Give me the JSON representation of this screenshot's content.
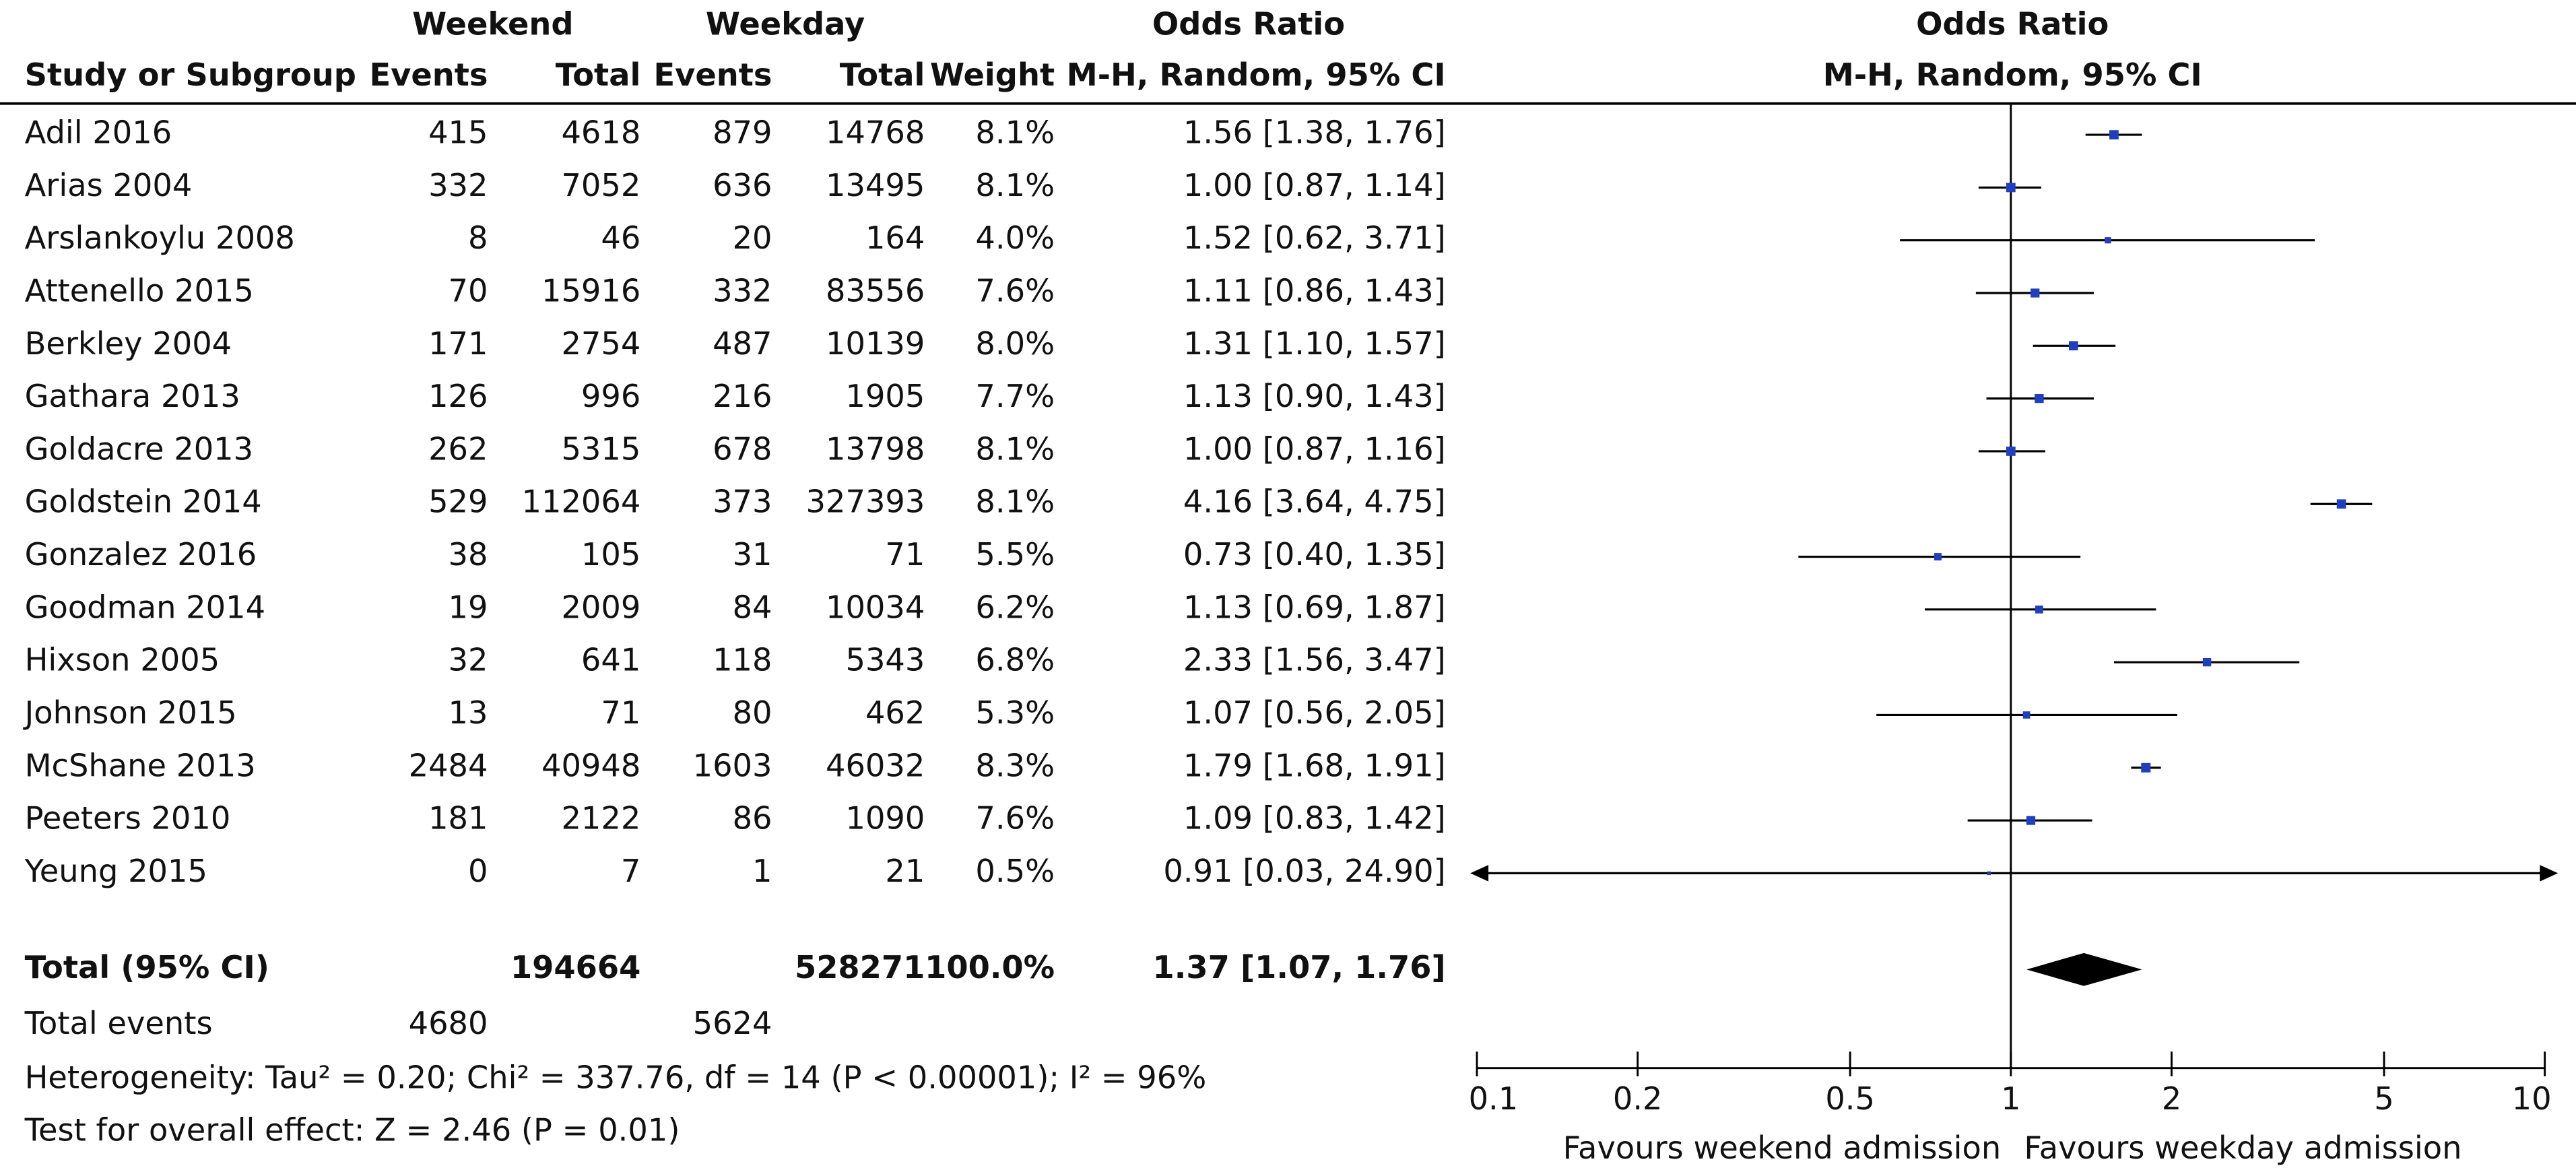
{
  "chart_data": {
    "type": "forest",
    "group_headers": {
      "weekend": "Weekend",
      "weekday": "Weekday",
      "table_or": "Odds Ratio",
      "plot_or": "Odds Ratio"
    },
    "columns": {
      "study": "Study or Subgroup",
      "weekend_events": "Events",
      "weekend_total": "Total",
      "weekday_events": "Events",
      "weekday_total": "Total",
      "weight": "Weight",
      "table_method": "M-H, Random, 95% CI",
      "plot_method": "M-H, Random, 95% CI"
    },
    "studies": [
      {
        "name": "Adil 2016",
        "weekend_events": 415,
        "weekend_total": 4618,
        "weekday_events": 879,
        "weekday_total": 14768,
        "weight": 8.1,
        "weight_label": "8.1%",
        "or": 1.56,
        "ci_low": 1.38,
        "ci_high": 1.76,
        "ci_label": "1.56 [1.38, 1.76]"
      },
      {
        "name": "Arias 2004",
        "weekend_events": 332,
        "weekend_total": 7052,
        "weekday_events": 636,
        "weekday_total": 13495,
        "weight": 8.1,
        "weight_label": "8.1%",
        "or": 1.0,
        "ci_low": 0.87,
        "ci_high": 1.14,
        "ci_label": "1.00 [0.87, 1.14]"
      },
      {
        "name": "Arslankoylu 2008",
        "weekend_events": 8,
        "weekend_total": 46,
        "weekday_events": 20,
        "weekday_total": 164,
        "weight": 4.0,
        "weight_label": "4.0%",
        "or": 1.52,
        "ci_low": 0.62,
        "ci_high": 3.71,
        "ci_label": "1.52 [0.62, 3.71]"
      },
      {
        "name": "Attenello 2015",
        "weekend_events": 70,
        "weekend_total": 15916,
        "weekday_events": 332,
        "weekday_total": 83556,
        "weight": 7.6,
        "weight_label": "7.6%",
        "or": 1.11,
        "ci_low": 0.86,
        "ci_high": 1.43,
        "ci_label": "1.11 [0.86, 1.43]"
      },
      {
        "name": "Berkley 2004",
        "weekend_events": 171,
        "weekend_total": 2754,
        "weekday_events": 487,
        "weekday_total": 10139,
        "weight": 8.0,
        "weight_label": "8.0%",
        "or": 1.31,
        "ci_low": 1.1,
        "ci_high": 1.57,
        "ci_label": "1.31 [1.10, 1.57]"
      },
      {
        "name": "Gathara 2013",
        "weekend_events": 126,
        "weekend_total": 996,
        "weekday_events": 216,
        "weekday_total": 1905,
        "weight": 7.7,
        "weight_label": "7.7%",
        "or": 1.13,
        "ci_low": 0.9,
        "ci_high": 1.43,
        "ci_label": "1.13 [0.90, 1.43]"
      },
      {
        "name": "Goldacre 2013",
        "weekend_events": 262,
        "weekend_total": 5315,
        "weekday_events": 678,
        "weekday_total": 13798,
        "weight": 8.1,
        "weight_label": "8.1%",
        "or": 1.0,
        "ci_low": 0.87,
        "ci_high": 1.16,
        "ci_label": "1.00 [0.87, 1.16]"
      },
      {
        "name": "Goldstein 2014",
        "weekend_events": 529,
        "weekend_total": 112064,
        "weekday_events": 373,
        "weekday_total": 327393,
        "weight": 8.1,
        "weight_label": "8.1%",
        "or": 4.16,
        "ci_low": 3.64,
        "ci_high": 4.75,
        "ci_label": "4.16 [3.64, 4.75]"
      },
      {
        "name": "Gonzalez 2016",
        "weekend_events": 38,
        "weekend_total": 105,
        "weekday_events": 31,
        "weekday_total": 71,
        "weight": 5.5,
        "weight_label": "5.5%",
        "or": 0.73,
        "ci_low": 0.4,
        "ci_high": 1.35,
        "ci_label": "0.73 [0.40, 1.35]"
      },
      {
        "name": "Goodman 2014",
        "weekend_events": 19,
        "weekend_total": 2009,
        "weekday_events": 84,
        "weekday_total": 10034,
        "weight": 6.2,
        "weight_label": "6.2%",
        "or": 1.13,
        "ci_low": 0.69,
        "ci_high": 1.87,
        "ci_label": "1.13 [0.69, 1.87]"
      },
      {
        "name": "Hixson 2005",
        "weekend_events": 32,
        "weekend_total": 641,
        "weekday_events": 118,
        "weekday_total": 5343,
        "weight": 6.8,
        "weight_label": "6.8%",
        "or": 2.33,
        "ci_low": 1.56,
        "ci_high": 3.47,
        "ci_label": "2.33 [1.56, 3.47]"
      },
      {
        "name": "Johnson 2015",
        "weekend_events": 13,
        "weekend_total": 71,
        "weekday_events": 80,
        "weekday_total": 462,
        "weight": 5.3,
        "weight_label": "5.3%",
        "or": 1.07,
        "ci_low": 0.56,
        "ci_high": 2.05,
        "ci_label": "1.07 [0.56, 2.05]"
      },
      {
        "name": "McShane 2013",
        "weekend_events": 2484,
        "weekend_total": 40948,
        "weekday_events": 1603,
        "weekday_total": 46032,
        "weight": 8.3,
        "weight_label": "8.3%",
        "or": 1.79,
        "ci_low": 1.68,
        "ci_high": 1.91,
        "ci_label": "1.79 [1.68, 1.91]"
      },
      {
        "name": "Peeters 2010",
        "weekend_events": 181,
        "weekend_total": 2122,
        "weekday_events": 86,
        "weekday_total": 1090,
        "weight": 7.6,
        "weight_label": "7.6%",
        "or": 1.09,
        "ci_low": 0.83,
        "ci_high": 1.42,
        "ci_label": "1.09 [0.83, 1.42]"
      },
      {
        "name": "Yeung 2015",
        "weekend_events": 0,
        "weekend_total": 7,
        "weekday_events": 1,
        "weekday_total": 21,
        "weight": 0.5,
        "weight_label": "0.5%",
        "or": 0.91,
        "ci_low": 0.03,
        "ci_high": 24.9,
        "ci_label": "0.91 [0.03, 24.90]"
      }
    ],
    "total": {
      "name": "Total (95% CI)",
      "weekend_total": 194664,
      "weekday_total": 528271,
      "weight_label": "100.0%",
      "or": 1.37,
      "ci_low": 1.07,
      "ci_high": 1.76,
      "ci_label": "1.37 [1.07, 1.76]"
    },
    "total_events": {
      "label": "Total events",
      "weekend": 4680,
      "weekday": 5624
    },
    "heterogeneity": "Heterogeneity: Tau² = 0.20; Chi² = 337.76, df = 14 (P < 0.00001); I² = 96%",
    "overall_effect": "Test for overall effect: Z = 2.46 (P = 0.01)",
    "log_scale": true,
    "xlim": [
      0.1,
      10
    ],
    "xticks": [
      0.1,
      0.2,
      0.5,
      1,
      2,
      5,
      10
    ],
    "null_value": 1,
    "favours_left": "Favours weekend admission",
    "favours_right": "Favours weekday admission",
    "marker_color": "#1f3fbf",
    "diamond_color": "#000000"
  }
}
